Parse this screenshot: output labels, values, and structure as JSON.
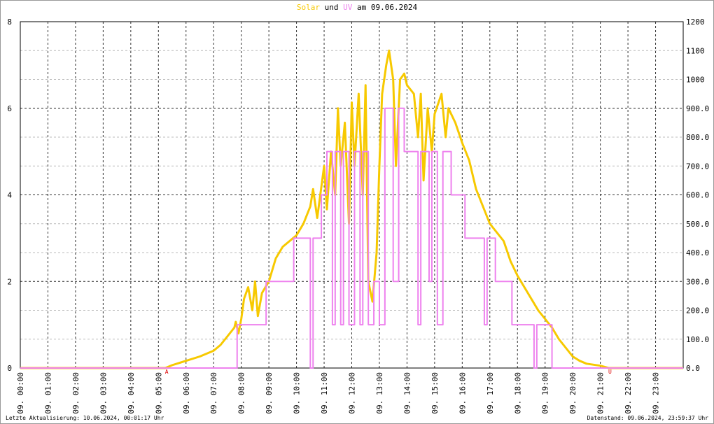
{
  "chart_data": {
    "type": "line",
    "title": {
      "und": "und",
      "date": "am 09.06.2024"
    },
    "xlim": [
      0,
      24
    ],
    "xticks": [
      {
        "value": 0,
        "label": "09. 00:00"
      },
      {
        "value": 1,
        "label": "09. 01:00"
      },
      {
        "value": 2,
        "label": "09. 02:00"
      },
      {
        "value": 3,
        "label": "09. 03:00"
      },
      {
        "value": 4,
        "label": "09. 04:00"
      },
      {
        "value": 5,
        "label": "09. 05:00"
      },
      {
        "value": 6,
        "label": "09. 06:00"
      },
      {
        "value": 7,
        "label": "09. 07:00"
      },
      {
        "value": 8,
        "label": "09. 08:00"
      },
      {
        "value": 9,
        "label": "09. 09:00"
      },
      {
        "value": 10,
        "label": "09. 10:00"
      },
      {
        "value": 11,
        "label": "09. 11:00"
      },
      {
        "value": 12,
        "label": "09. 12:00"
      },
      {
        "value": 13,
        "label": "09. 13:00"
      },
      {
        "value": 14,
        "label": "09. 14:00"
      },
      {
        "value": 15,
        "label": "09. 15:00"
      },
      {
        "value": 16,
        "label": "09. 16:00"
      },
      {
        "value": 17,
        "label": "09. 17:00"
      },
      {
        "value": 18,
        "label": "09. 18:00"
      },
      {
        "value": 19,
        "label": "09. 19:00"
      },
      {
        "value": 20,
        "label": "09. 20:00"
      },
      {
        "value": 21,
        "label": "09. 21:00"
      },
      {
        "value": 22,
        "label": "09. 22:00"
      },
      {
        "value": 23,
        "label": "09. 23:00"
      }
    ],
    "ylim": [
      0,
      8
    ],
    "yticks": [
      0,
      2,
      4,
      6,
      8
    ],
    "y2lim": [
      0,
      1200
    ],
    "y2ticks": [
      {
        "value": 0,
        "label": "0.0"
      },
      {
        "value": 100,
        "label": "100.0"
      },
      {
        "value": 200,
        "label": "200.0"
      },
      {
        "value": 300,
        "label": "300.0"
      },
      {
        "value": 400,
        "label": "400.0"
      },
      {
        "value": 500,
        "label": "500.0"
      },
      {
        "value": 600,
        "label": "600.0"
      },
      {
        "value": 700,
        "label": "700.0"
      },
      {
        "value": 800,
        "label": "800.0"
      },
      {
        "value": 900,
        "label": "900.0"
      },
      1000,
      1100,
      1200
    ],
    "grid": true,
    "series": [
      {
        "name": "Solar",
        "color": "#f7c900",
        "axis": "y2",
        "x": [
          0,
          5.25,
          5.5,
          6,
          6.5,
          7,
          7.25,
          7.5,
          7.75,
          7.8,
          7.9,
          8,
          8.1,
          8.25,
          8.4,
          8.5,
          8.6,
          8.75,
          9,
          9.25,
          9.5,
          9.75,
          10,
          10.25,
          10.5,
          10.6,
          10.75,
          11,
          11.1,
          11.25,
          11.4,
          11.5,
          11.6,
          11.75,
          11.9,
          12,
          12.1,
          12.25,
          12.4,
          12.5,
          12.6,
          12.75,
          12.9,
          13,
          13.1,
          13.25,
          13.35,
          13.5,
          13.6,
          13.75,
          13.9,
          14,
          14.25,
          14.4,
          14.5,
          14.6,
          14.75,
          14.9,
          15,
          15.25,
          15.4,
          15.5,
          15.75,
          16,
          16.25,
          16.5,
          16.75,
          17,
          17.25,
          17.5,
          17.75,
          18,
          18.25,
          18.5,
          18.75,
          19,
          19.25,
          19.5,
          19.75,
          20,
          20.25,
          20.5,
          21,
          21.3,
          24
        ],
        "values": [
          0,
          0,
          10,
          25,
          40,
          60,
          80,
          110,
          140,
          160,
          120,
          170,
          240,
          280,
          200,
          300,
          180,
          260,
          300,
          380,
          420,
          440,
          460,
          500,
          560,
          620,
          520,
          700,
          550,
          750,
          600,
          900,
          700,
          850,
          500,
          920,
          700,
          950,
          600,
          980,
          300,
          230,
          400,
          700,
          950,
          1050,
          1100,
          1000,
          700,
          1000,
          1020,
          980,
          950,
          800,
          950,
          650,
          900,
          750,
          880,
          950,
          800,
          900,
          850,
          780,
          720,
          620,
          560,
          500,
          470,
          440,
          370,
          320,
          280,
          240,
          200,
          170,
          140,
          100,
          70,
          40,
          25,
          15,
          8,
          0,
          0
        ]
      },
      {
        "name": "UV",
        "color": "#ee82ee",
        "step": true,
        "x": [
          0,
          7.85,
          8.9,
          9.9,
          10.5,
          10.6,
          10.9,
          11.1,
          11.3,
          11.4,
          11.6,
          11.7,
          11.9,
          12.1,
          12.3,
          12.4,
          12.6,
          12.8,
          13,
          13.2,
          13.5,
          13.7,
          13.9,
          14.2,
          14.4,
          14.5,
          14.8,
          14.9,
          15.1,
          15.3,
          15.6,
          16.1,
          16.8,
          16.9,
          17.2,
          17.8,
          18.3,
          18.6,
          18.7,
          19.25,
          24
        ],
        "values": [
          0,
          1,
          2,
          3,
          0,
          3,
          4,
          5,
          1,
          5,
          1,
          5,
          1,
          5,
          1,
          5,
          1,
          2,
          1,
          6,
          2,
          6,
          5,
          5,
          1,
          5,
          2,
          5,
          1,
          5,
          4,
          3,
          1,
          3,
          2,
          1,
          1,
          0,
          1,
          0,
          0
        ]
      }
    ],
    "annotations": [
      {
        "text": "A",
        "x": 5.3
      },
      {
        "text": "U",
        "x": 21.35
      }
    ],
    "footer": {
      "left": "Letzte Aktualisierung: 10.06.2024, 00:01:17 Uhr",
      "right": "Datenstand: 09.06.2024, 23:59:37 Uhr"
    }
  }
}
